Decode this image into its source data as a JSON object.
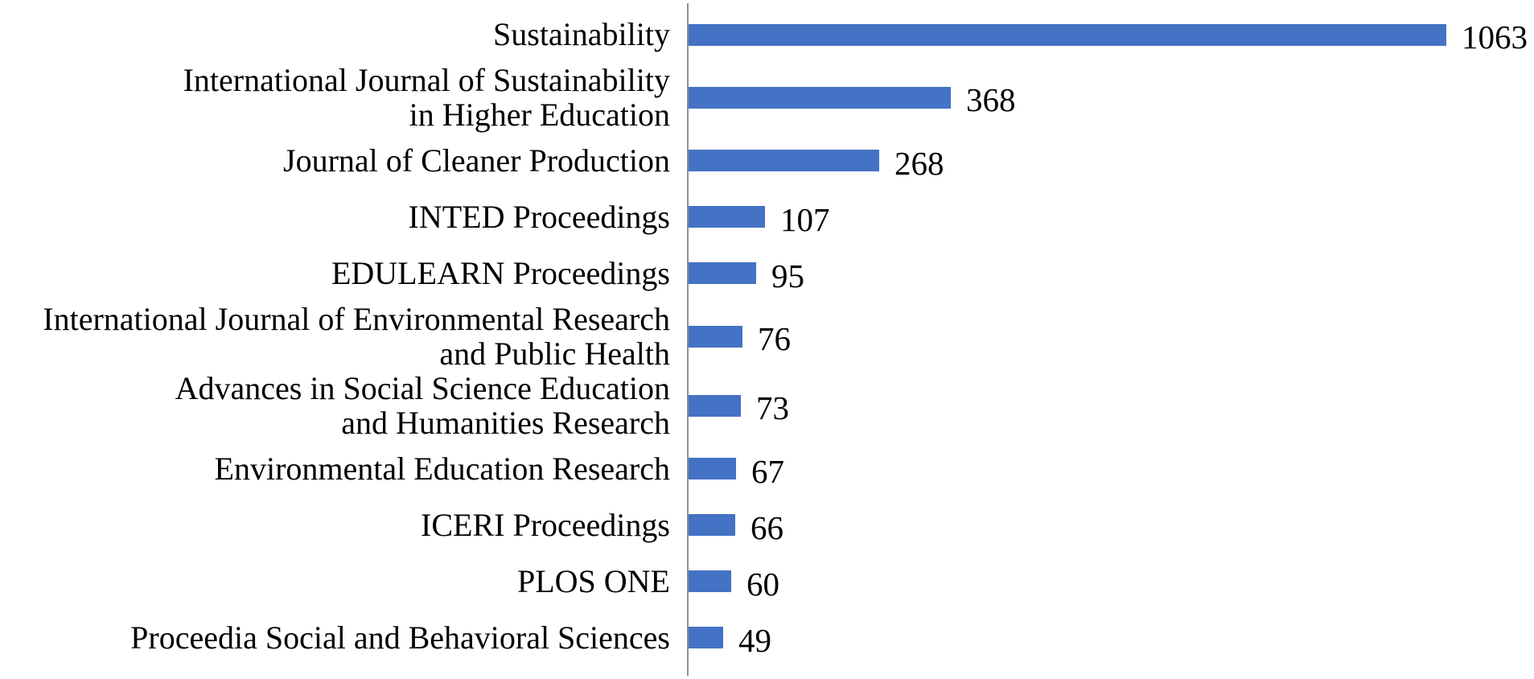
{
  "chart_data": {
    "type": "bar",
    "orientation": "horizontal",
    "title": "",
    "xlabel": "",
    "ylabel": "",
    "grid": false,
    "legend": false,
    "data_labels": true,
    "data_label_position": "end-of-bar",
    "bar_color": "#4472C4",
    "axis_line_color": "#8F8F8F",
    "text_color": "#000000",
    "categories": [
      "Sustainability",
      "International Journal of Sustainability in Higher Education",
      "Journal of Cleaner Production",
      "INTED Proceedings",
      "EDULEARN Proceedings",
      "International Journal of Environmental Research and Public Health",
      "Advances in Social Science Education and Humanities Research",
      "Environmental Education Research",
      "ICERI Proceedings",
      "PLOS ONE",
      "Proceedia Social and Behavioral Sciences"
    ],
    "category_display_lines": [
      [
        "Sustainability"
      ],
      [
        "International Journal of Sustainability",
        "in Higher Education"
      ],
      [
        "Journal of Cleaner Production"
      ],
      [
        "INTED Proceedings"
      ],
      [
        "EDULEARN Proceedings"
      ],
      [
        "International Journal of Environmental Research",
        "and Public Health"
      ],
      [
        "Advances in Social Science Education",
        "and Humanities Research"
      ],
      [
        "Environmental Education Research"
      ],
      [
        "ICERI Proceedings"
      ],
      [
        "PLOS ONE"
      ],
      [
        "Proceedia Social and Behavioral Sciences"
      ]
    ],
    "values": [
      1063,
      368,
      268,
      107,
      95,
      76,
      73,
      67,
      66,
      60,
      49
    ],
    "value_labels": [
      "1063",
      "368",
      "268",
      "107",
      "95",
      "76",
      "73",
      "67",
      "66",
      "60",
      "49"
    ]
  }
}
